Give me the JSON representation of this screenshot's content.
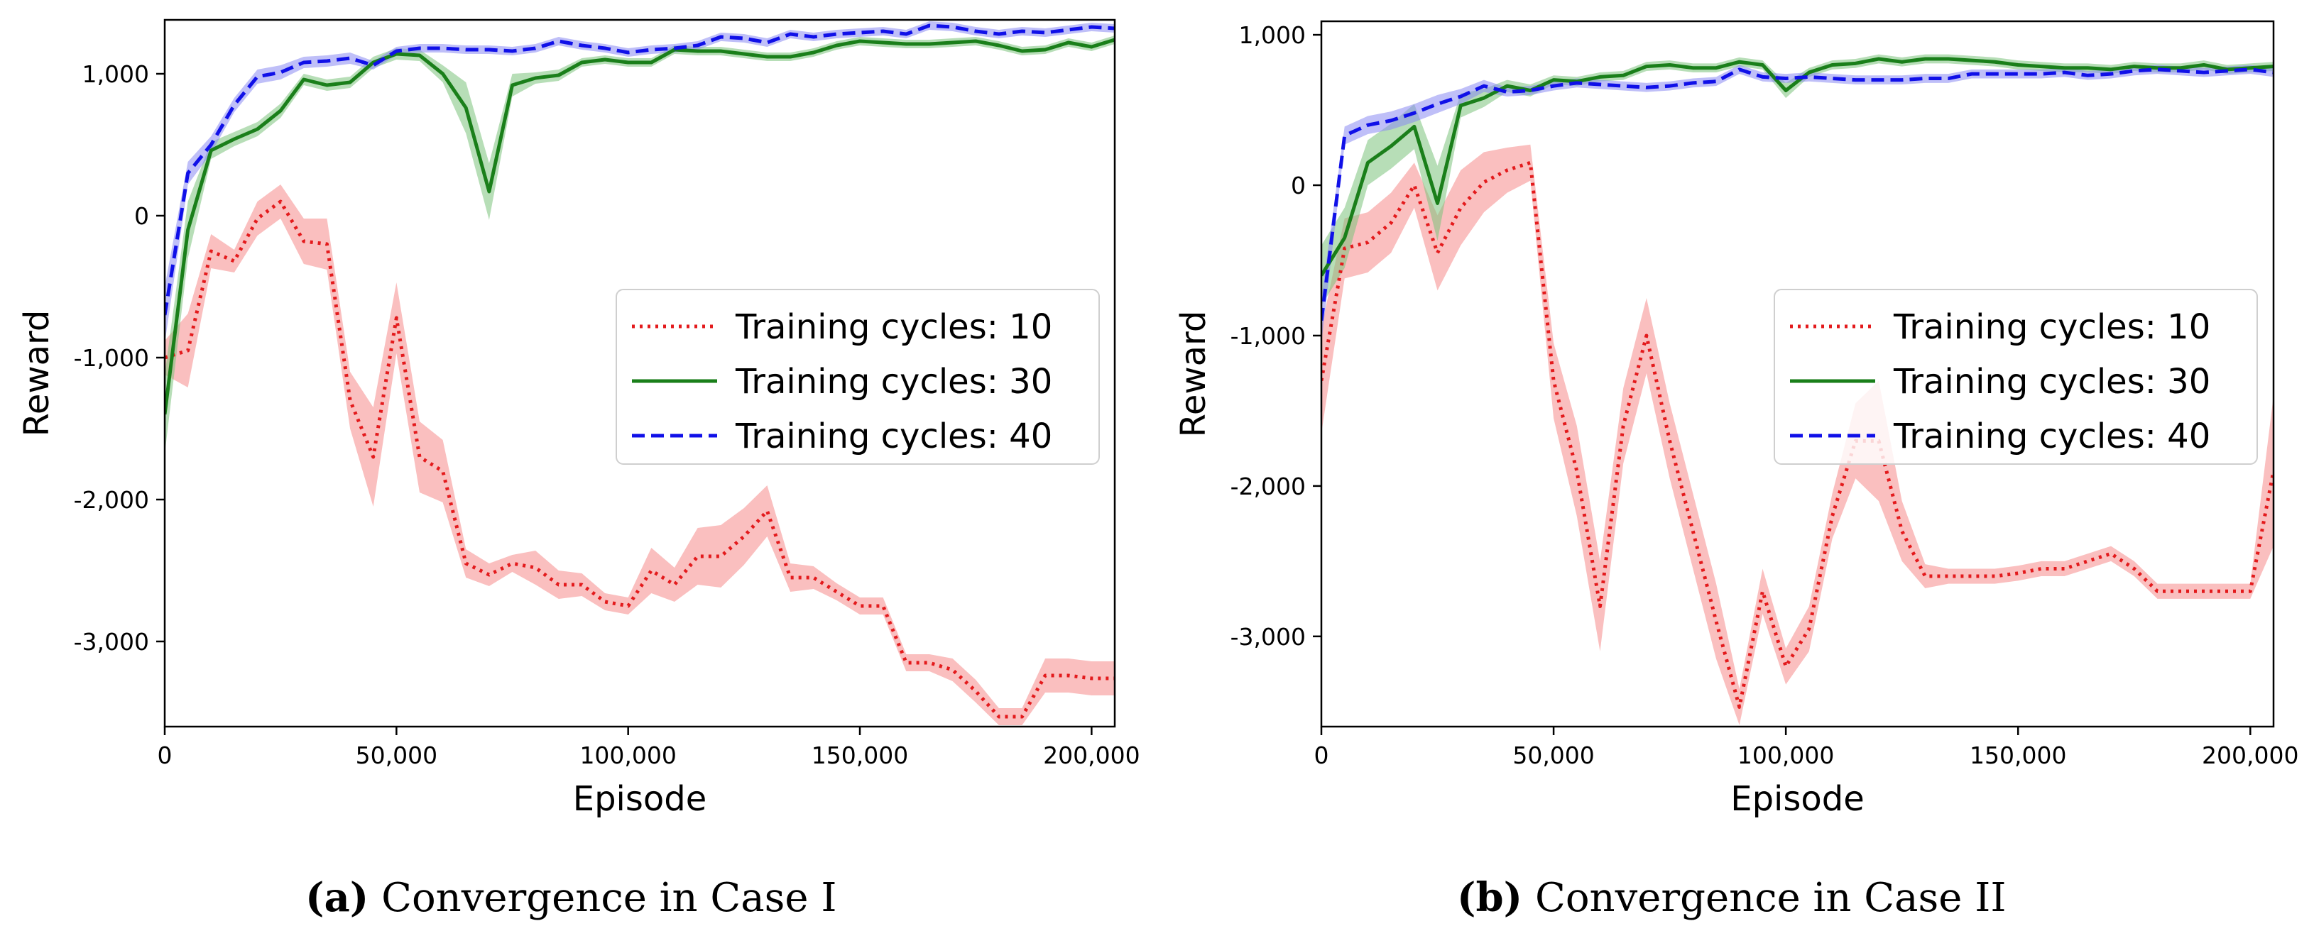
{
  "chart_data": [
    {
      "type": "line",
      "caption_letter": "(a)",
      "caption_text": "Convergence in Case I",
      "xlabel": "Episode",
      "ylabel": "Reward",
      "xlim": [
        0,
        205000
      ],
      "ylim": [
        -3600,
        1380
      ],
      "xticks": [
        0,
        50000,
        100000,
        150000,
        200000
      ],
      "xtick_labels": [
        "0",
        "50,000",
        "100,000",
        "150,000",
        "200,000"
      ],
      "yticks": [
        -3000,
        -2000,
        -1000,
        0,
        1000
      ],
      "ytick_labels": [
        "-3,000",
        "-2,000",
        "-1,000",
        "0",
        "1,000"
      ],
      "legend_position": "right-middle",
      "x": [
        0,
        5000,
        10000,
        15000,
        20000,
        25000,
        30000,
        35000,
        40000,
        45000,
        50000,
        55000,
        60000,
        65000,
        70000,
        75000,
        80000,
        85000,
        90000,
        95000,
        100000,
        105000,
        110000,
        115000,
        120000,
        125000,
        130000,
        135000,
        140000,
        145000,
        150000,
        155000,
        160000,
        165000,
        170000,
        175000,
        180000,
        185000,
        190000,
        195000,
        200000,
        205000
      ],
      "series": [
        {
          "name": "Training cycles: 10",
          "color": "#e31a1c",
          "band_color": "#f58a8a",
          "style": "dotted",
          "values": [
            -1000,
            -950,
            -250,
            -320,
            -20,
            100,
            -180,
            -200,
            -1300,
            -1700,
            -720,
            -1700,
            -1800,
            -2450,
            -2530,
            -2450,
            -2480,
            -2600,
            -2600,
            -2720,
            -2750,
            -2500,
            -2600,
            -2400,
            -2400,
            -2260,
            -2080,
            -2550,
            -2550,
            -2650,
            -2750,
            -2750,
            -3150,
            -3150,
            -3200,
            -3350,
            -3530,
            -3530,
            -3240,
            -3240,
            -3260,
            -3260
          ],
          "band": [
            120,
            260,
            120,
            80,
            120,
            120,
            160,
            180,
            200,
            350,
            250,
            250,
            220,
            100,
            80,
            60,
            120,
            100,
            80,
            60,
            60,
            160,
            120,
            200,
            220,
            200,
            180,
            100,
            80,
            60,
            60,
            60,
            60,
            60,
            80,
            80,
            60,
            60,
            120,
            120,
            120,
            120
          ]
        },
        {
          "name": "Training cycles: 30",
          "color": "#1a7f1a",
          "band_color": "#7cc27c",
          "style": "solid",
          "values": [
            -1400,
            -100,
            460,
            540,
            610,
            740,
            960,
            920,
            940,
            1080,
            1140,
            1130,
            1000,
            760,
            170,
            920,
            970,
            990,
            1080,
            1100,
            1080,
            1080,
            1170,
            1160,
            1160,
            1140,
            1120,
            1120,
            1150,
            1200,
            1230,
            1220,
            1210,
            1210,
            1220,
            1230,
            1200,
            1160,
            1170,
            1220,
            1190,
            1240
          ],
          "band": [
            280,
            200,
            60,
            50,
            50,
            50,
            40,
            40,
            40,
            40,
            40,
            40,
            60,
            180,
            200,
            80,
            40,
            40,
            30,
            30,
            30,
            30,
            30,
            30,
            30,
            30,
            30,
            30,
            30,
            30,
            30,
            30,
            30,
            30,
            30,
            30,
            30,
            30,
            30,
            30,
            30,
            30
          ]
        },
        {
          "name": "Training cycles: 40",
          "color": "#1010e8",
          "band_color": "#8a8af2",
          "style": "dashed",
          "values": [
            -700,
            300,
            500,
            780,
            980,
            1010,
            1080,
            1090,
            1110,
            1060,
            1160,
            1180,
            1180,
            1170,
            1170,
            1160,
            1180,
            1230,
            1200,
            1180,
            1150,
            1170,
            1180,
            1200,
            1260,
            1250,
            1220,
            1280,
            1260,
            1280,
            1290,
            1300,
            1280,
            1340,
            1330,
            1300,
            1280,
            1300,
            1290,
            1310,
            1330,
            1320
          ],
          "band": [
            200,
            80,
            60,
            50,
            50,
            50,
            40,
            40,
            40,
            30,
            30,
            30,
            30,
            30,
            30,
            30,
            30,
            30,
            30,
            30,
            30,
            30,
            30,
            30,
            30,
            30,
            30,
            30,
            30,
            30,
            30,
            30,
            30,
            30,
            30,
            30,
            30,
            30,
            30,
            30,
            30,
            30
          ]
        }
      ]
    },
    {
      "type": "line",
      "caption_letter": "(b)",
      "caption_text": "Convergence in Case II",
      "xlabel": "Episode",
      "ylabel": "Reward",
      "xlim": [
        0,
        205000
      ],
      "ylim": [
        -3600,
        1090
      ],
      "xticks": [
        0,
        50000,
        100000,
        150000,
        200000
      ],
      "xtick_labels": [
        "0",
        "50,000",
        "100,000",
        "150,000",
        "200,000"
      ],
      "yticks": [
        -3000,
        -2000,
        -1000,
        0,
        1000
      ],
      "ytick_labels": [
        "-3,000",
        "-2,000",
        "-1,000",
        "0",
        "1,000"
      ],
      "legend_position": "right-middle",
      "x": [
        0,
        5000,
        10000,
        15000,
        20000,
        25000,
        30000,
        35000,
        40000,
        45000,
        50000,
        55000,
        60000,
        65000,
        70000,
        75000,
        80000,
        85000,
        90000,
        95000,
        100000,
        105000,
        110000,
        115000,
        120000,
        125000,
        130000,
        135000,
        140000,
        145000,
        150000,
        155000,
        160000,
        165000,
        170000,
        175000,
        180000,
        185000,
        190000,
        195000,
        200000,
        205000
      ],
      "series": [
        {
          "name": "Training cycles: 10",
          "color": "#e31a1c",
          "band_color": "#f58a8a",
          "style": "dotted",
          "values": [
            -1300,
            -420,
            -380,
            -250,
            0,
            -450,
            -150,
            20,
            100,
            150,
            -1300,
            -1900,
            -2800,
            -1600,
            -1000,
            -1700,
            -2300,
            -2900,
            -3470,
            -2700,
            -3200,
            -2950,
            -2200,
            -1700,
            -1700,
            -2300,
            -2600,
            -2600,
            -2600,
            -2600,
            -2580,
            -2550,
            -2550,
            -2500,
            -2450,
            -2550,
            -2700,
            -2700,
            -2700,
            -2700,
            -2700,
            -1900
          ],
          "band": [
            350,
            200,
            200,
            200,
            150,
            250,
            250,
            200,
            150,
            120,
            250,
            300,
            300,
            250,
            250,
            250,
            250,
            250,
            120,
            150,
            120,
            150,
            150,
            250,
            400,
            200,
            80,
            50,
            50,
            50,
            50,
            50,
            50,
            50,
            50,
            50,
            50,
            50,
            50,
            50,
            50,
            500
          ]
        },
        {
          "name": "Training cycles: 30",
          "color": "#1a7f1a",
          "band_color": "#7cc27c",
          "style": "solid",
          "values": [
            -600,
            -350,
            150,
            260,
            390,
            -120,
            530,
            580,
            660,
            630,
            700,
            690,
            720,
            730,
            790,
            800,
            780,
            780,
            820,
            800,
            630,
            750,
            800,
            810,
            840,
            820,
            840,
            840,
            830,
            820,
            800,
            790,
            780,
            780,
            770,
            790,
            780,
            780,
            800,
            770,
            780,
            790
          ],
          "band": [
            200,
            200,
            150,
            150,
            150,
            250,
            80,
            60,
            40,
            40,
            30,
            30,
            30,
            30,
            30,
            30,
            30,
            30,
            30,
            30,
            50,
            30,
            30,
            30,
            30,
            30,
            30,
            30,
            30,
            30,
            30,
            30,
            30,
            30,
            30,
            30,
            30,
            30,
            30,
            30,
            30,
            30
          ]
        },
        {
          "name": "Training cycles: 40",
          "color": "#1010e8",
          "band_color": "#8a8af2",
          "style": "dashed",
          "values": [
            -900,
            330,
            400,
            430,
            480,
            540,
            590,
            660,
            620,
            630,
            660,
            680,
            670,
            660,
            650,
            660,
            680,
            690,
            770,
            720,
            710,
            720,
            710,
            700,
            700,
            700,
            710,
            710,
            740,
            740,
            740,
            740,
            750,
            730,
            740,
            760,
            770,
            760,
            750,
            760,
            770,
            750
          ],
          "band": [
            150,
            60,
            60,
            60,
            60,
            60,
            50,
            40,
            30,
            30,
            30,
            30,
            30,
            30,
            30,
            30,
            30,
            30,
            30,
            30,
            30,
            30,
            30,
            30,
            30,
            30,
            30,
            30,
            30,
            30,
            30,
            30,
            30,
            30,
            30,
            30,
            30,
            30,
            30,
            30,
            30,
            30
          ]
        }
      ]
    }
  ]
}
